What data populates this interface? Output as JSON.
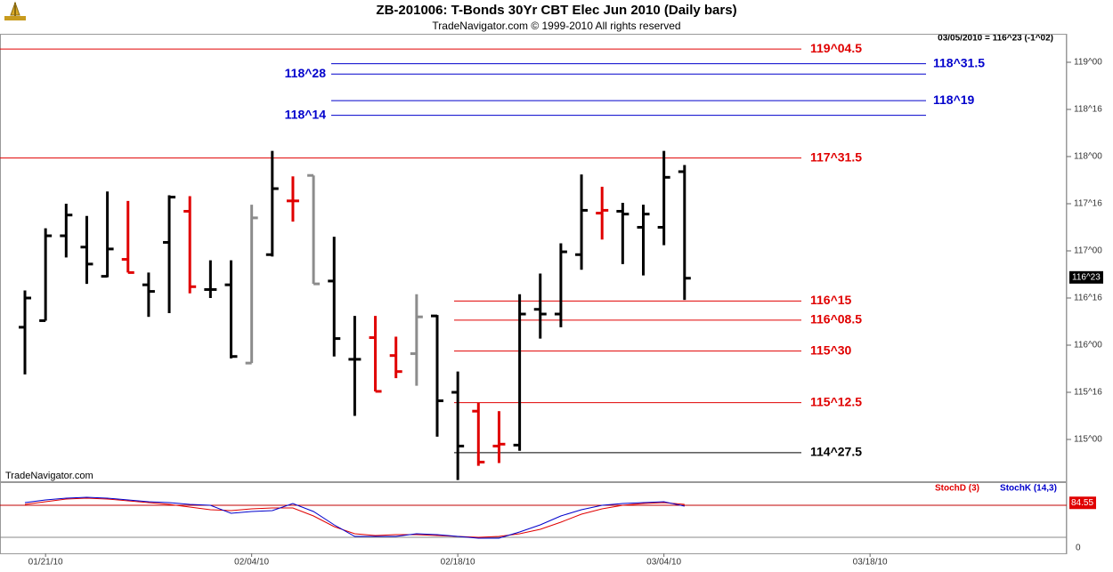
{
  "header": {
    "title": "ZB-201006:  T-Bonds 30Yr CBT Elec Jun 2010  (Daily bars)",
    "subtitle": "TradeNavigator.com © 1999-2010 All rights reserved",
    "quote": "03/05/2010 = 116^23 (-1^02)",
    "watermark": "TradeNavigator.com"
  },
  "chart_data": [
    {
      "type": "ohlc",
      "categories": [
        null,
        "01/21/10",
        null,
        null,
        null,
        null,
        null,
        null,
        null,
        null,
        null,
        "02/04/10",
        null,
        null,
        null,
        null,
        null,
        null,
        null,
        null,
        null,
        "02/18/10",
        null,
        null,
        null,
        null,
        null,
        null,
        null,
        null,
        null,
        "03/04/10",
        null,
        null,
        null,
        null,
        null,
        null,
        null,
        null,
        null,
        "03/18/10"
      ],
      "open": [
        116.19,
        116.26,
        117.16,
        117.04,
        116.73,
        116.91,
        116.64,
        117.09,
        117.42,
        116.59,
        116.64,
        115.81,
        116.96,
        117.53,
        117.8,
        116.68,
        115.85,
        116.08,
        115.89,
        115.91,
        116.31,
        115.5,
        115.3,
        114.93,
        114.94,
        116.38,
        116.33,
        116.96,
        117.4,
        117.42,
        117.25,
        117.25,
        117.84,
        null,
        null,
        null,
        null,
        null,
        null,
        null,
        null,
        null
      ],
      "high": [
        116.58,
        117.24,
        117.5,
        117.37,
        117.63,
        117.53,
        116.77,
        117.59,
        117.58,
        116.9,
        116.9,
        117.49,
        118.06,
        117.79,
        117.8,
        117.15,
        116.31,
        116.31,
        116.09,
        116.54,
        116.32,
        115.72,
        115.39,
        115.3,
        116.54,
        116.76,
        117.08,
        117.81,
        117.68,
        117.51,
        117.49,
        118.06,
        117.91,
        null,
        null,
        null,
        null,
        null,
        null,
        null,
        null,
        null
      ],
      "low": [
        115.69,
        116.26,
        116.93,
        116.65,
        116.72,
        116.77,
        116.3,
        116.34,
        116.55,
        116.5,
        115.86,
        115.81,
        116.94,
        117.31,
        116.65,
        115.88,
        115.25,
        115.51,
        115.65,
        115.57,
        115.03,
        114.57,
        114.72,
        114.75,
        114.88,
        116.07,
        116.19,
        116.8,
        117.12,
        116.86,
        116.74,
        117.06,
        116.48,
        null,
        null,
        null,
        null,
        null,
        null,
        null,
        null,
        null
      ],
      "close": [
        116.5,
        117.16,
        117.38,
        116.86,
        117.02,
        116.77,
        116.57,
        117.57,
        116.62,
        116.59,
        115.88,
        117.35,
        117.66,
        117.53,
        116.65,
        116.07,
        115.85,
        115.51,
        115.72,
        116.3,
        115.41,
        114.93,
        114.76,
        114.95,
        116.33,
        116.33,
        116.99,
        117.43,
        117.43,
        117.39,
        117.39,
        117.78,
        116.71,
        null,
        null,
        null,
        null,
        null,
        null,
        null,
        null,
        null
      ],
      "bar_colors": [
        "#000000",
        "#000000",
        "#000000",
        "#000000",
        "#000000",
        "#e00000",
        "#000000",
        "#000000",
        "#e00000",
        "#000000",
        "#000000",
        "#8c8c8c",
        "#000000",
        "#e00000",
        "#8c8c8c",
        "#000000",
        "#000000",
        "#e00000",
        "#e00000",
        "#8c8c8c",
        "#000000",
        "#000000",
        "#e00000",
        "#e00000",
        "#000000",
        "#000000",
        "#000000",
        "#000000",
        "#e00000",
        "#000000",
        "#000000",
        "#000000",
        "#000000",
        null,
        null,
        null,
        null,
        null,
        null,
        null,
        null,
        null
      ],
      "ylim": [
        114.566,
        119.302
      ],
      "yticks": [
        {
          "value": 115,
          "label": "115^00"
        },
        {
          "value": 115.5,
          "label": "115^16"
        },
        {
          "value": 116,
          "label": "116^00"
        },
        {
          "value": 116.5,
          "label": "116^16"
        },
        {
          "value": 117,
          "label": "117^00"
        },
        {
          "value": 117.5,
          "label": "117^16"
        },
        {
          "value": 118,
          "label": "118^00"
        },
        {
          "value": 118.5,
          "label": "118^16"
        },
        {
          "value": 119,
          "label": "119^00"
        }
      ],
      "levels": [
        {
          "value": 119.140625,
          "label": "119^04.5",
          "color": "#e00000"
        },
        {
          "value": 118.984375,
          "label": "118^31.5",
          "color": "#0000cc"
        },
        {
          "value": 118.875,
          "label": "118^28",
          "color": "#0000cc"
        },
        {
          "value": 118.59375,
          "label": "118^19",
          "color": "#0000cc"
        },
        {
          "value": 118.4375,
          "label": "118^14",
          "color": "#0000cc"
        },
        {
          "value": 117.984375,
          "label": "117^31.5",
          "color": "#e00000"
        },
        {
          "value": 116.46875,
          "label": "116^15",
          "color": "#e00000"
        },
        {
          "value": 116.265625,
          "label": "116^08.5",
          "color": "#e00000"
        },
        {
          "value": 115.9375,
          "label": "115^30",
          "color": "#e00000"
        },
        {
          "value": 115.390625,
          "label": "115^12.5",
          "color": "#e00000"
        },
        {
          "value": 114.859375,
          "label": "114^27.5",
          "color": "#000000"
        }
      ],
      "last_price": {
        "value": 116.71875,
        "label": "116^23"
      }
    },
    {
      "type": "line",
      "series": [
        {
          "name": "StochD (3)",
          "color": "#e00000",
          "values": [
            81.7,
            86.7,
            91.7,
            93.3,
            91.7,
            88.3,
            85,
            81.7,
            76.7,
            71.7,
            70,
            73.3,
            75,
            75,
            60,
            40,
            26.7,
            23.3,
            25,
            25,
            23.3,
            21.7,
            20,
            21.7,
            26.7,
            35,
            48.3,
            63.3,
            73.3,
            80,
            83.3,
            85,
            81.7,
            null,
            null,
            null,
            null,
            null,
            null,
            null,
            null,
            null
          ]
        },
        {
          "name": "StochK (14,3)",
          "color": "#0000cc",
          "values": [
            85,
            90,
            93.3,
            95,
            93.3,
            90,
            86.7,
            85,
            81.7,
            80,
            65,
            68.3,
            70,
            83.3,
            68.3,
            43.3,
            21.7,
            21.7,
            21.7,
            26.7,
            25,
            21.7,
            18.3,
            18.3,
            30,
            43.3,
            60,
            71.7,
            80,
            83.3,
            85,
            86.7,
            78.3,
            null,
            null,
            null,
            null,
            null,
            null,
            null,
            null,
            null
          ]
        }
      ],
      "ylim": [
        -10,
        118.3
      ],
      "yticks": [
        0
      ],
      "reference_lines": [
        80,
        20
      ],
      "last_value": 84.55
    }
  ]
}
